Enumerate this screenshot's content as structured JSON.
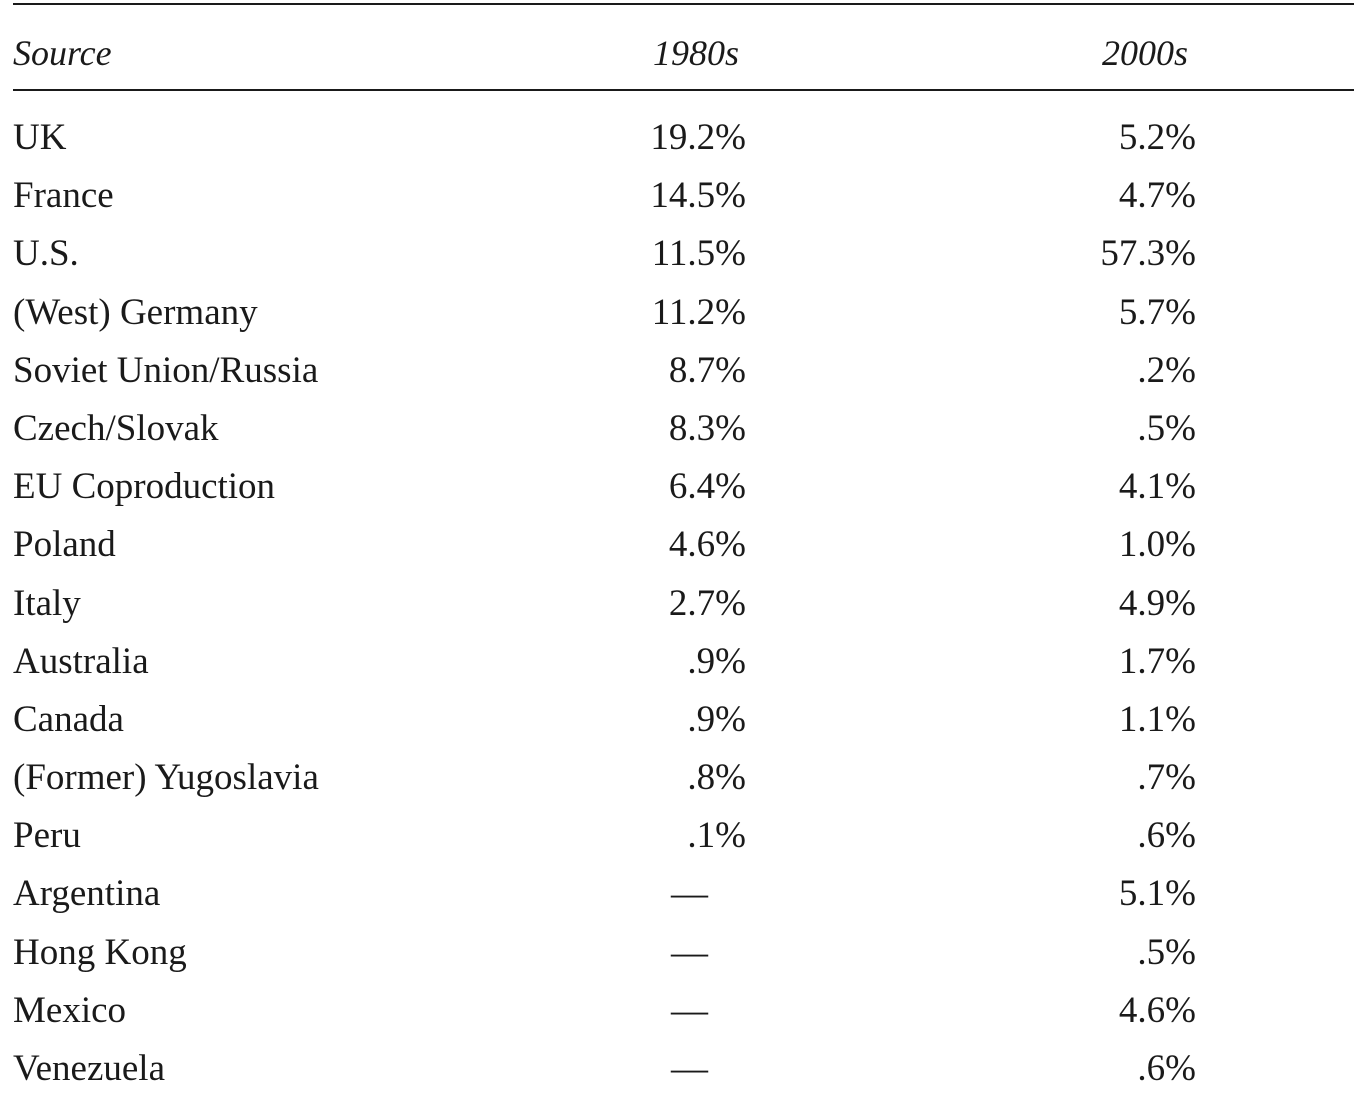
{
  "table": {
    "headers": {
      "source": "Source",
      "col_1980s": "1980s",
      "col_2000s": "2000s"
    },
    "rows": [
      {
        "source": "UK",
        "v1980s": "19.2%",
        "v2000s": "5.2%"
      },
      {
        "source": "France",
        "v1980s": "14.5%",
        "v2000s": "4.7%"
      },
      {
        "source": "U.S.",
        "v1980s": "11.5%",
        "v2000s": "57.3%"
      },
      {
        "source": "(West) Germany",
        "v1980s": "11.2%",
        "v2000s": "5.7%"
      },
      {
        "source": "Soviet Union/Russia",
        "v1980s": "8.7%",
        "v2000s": ".2%"
      },
      {
        "source": "Czech/Slovak",
        "v1980s": "8.3%",
        "v2000s": ".5%"
      },
      {
        "source": "EU Coproduction",
        "v1980s": "6.4%",
        "v2000s": "4.1%"
      },
      {
        "source": "Poland",
        "v1980s": "4.6%",
        "v2000s": "1.0%"
      },
      {
        "source": "Italy",
        "v1980s": "2.7%",
        "v2000s": "4.9%"
      },
      {
        "source": "Australia",
        "v1980s": ".9%",
        "v2000s": "1.7%"
      },
      {
        "source": "Canada",
        "v1980s": ".9%",
        "v2000s": "1.1%"
      },
      {
        "source": "(Former) Yugoslavia",
        "v1980s": ".8%",
        "v2000s": ".7%"
      },
      {
        "source": "Peru",
        "v1980s": ".1%",
        "v2000s": ".6%"
      },
      {
        "source": "Argentina",
        "v1980s": "—",
        "v2000s": "5.1%"
      },
      {
        "source": "Hong Kong",
        "v1980s": "—",
        "v2000s": ".5%"
      },
      {
        "source": "Mexico",
        "v1980s": "—",
        "v2000s": "4.6%"
      },
      {
        "source": "Venezuela",
        "v1980s": "—",
        "v2000s": ".6%"
      }
    ]
  }
}
